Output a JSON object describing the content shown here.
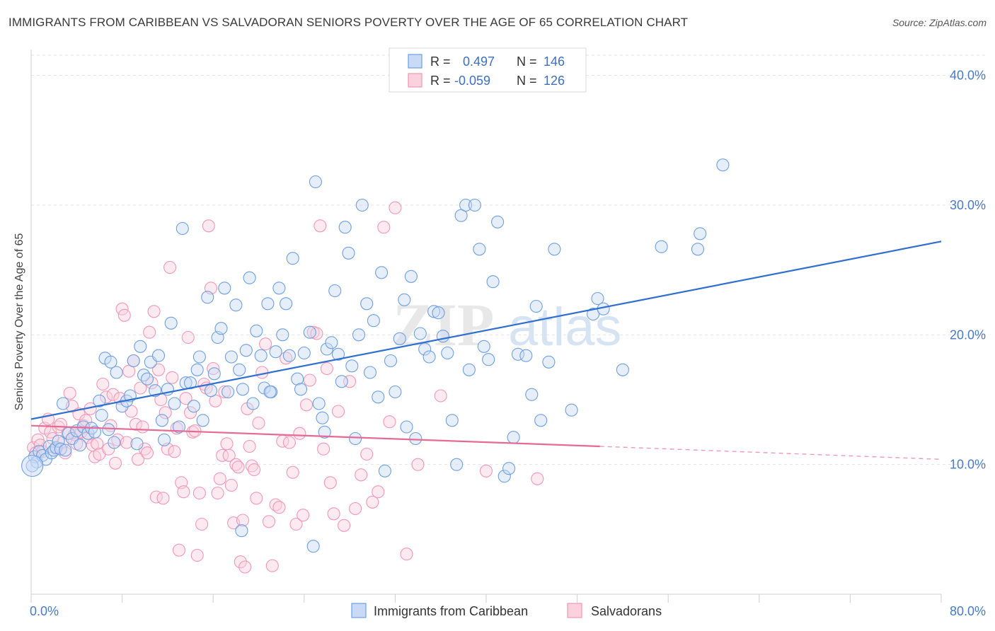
{
  "header": {
    "title": "IMMIGRANTS FROM CARIBBEAN VS SALVADORAN SENIORS POVERTY OVER THE AGE OF 65 CORRELATION CHART",
    "source": "Source: ZipAtlas.com"
  },
  "watermark": {
    "part1": "ZIP",
    "part2": "atlas"
  },
  "legend": {
    "rows": [
      {
        "r_label": "R =",
        "r_value": "0.497",
        "n_label": "N =",
        "n_value": "146",
        "color": "#6f9fe0"
      },
      {
        "r_label": "R =",
        "r_value": "-0.059",
        "n_label": "N =",
        "n_value": "126",
        "color": "#f098b4"
      }
    ]
  },
  "chart_data": {
    "type": "scatter",
    "ylabel": "Seniors Poverty Over the Age of 65",
    "xlim": [
      0,
      80
    ],
    "ylim": [
      0,
      42
    ],
    "x_tick_labels": [
      "0.0%",
      "80.0%"
    ],
    "y_ticks": [
      10,
      20,
      30,
      40
    ],
    "y_tick_labels": [
      "10.0%",
      "20.0%",
      "30.0%",
      "40.0%"
    ],
    "grid": "horizontal dashed",
    "legend_position": "top-center",
    "series": [
      {
        "name": "Immigrants from Caribbean",
        "color": "#6f9fe0",
        "trend": {
          "x": [
            0,
            80
          ],
          "y": [
            13.5,
            27.2
          ]
        },
        "points": [
          [
            0.3,
            10.6
          ],
          [
            0.5,
            10.2
          ],
          [
            0.7,
            11.0
          ],
          [
            1.0,
            10.7
          ],
          [
            1.3,
            10.4
          ],
          [
            1.6,
            11.4
          ],
          [
            1.8,
            10.9
          ],
          [
            2.0,
            11.1
          ],
          [
            2.2,
            11.3
          ],
          [
            2.4,
            11.8
          ],
          [
            2.6,
            11.2
          ],
          [
            2.8,
            14.7
          ],
          [
            3.0,
            11.1
          ],
          [
            3.3,
            12.4
          ],
          [
            3.6,
            12.0
          ],
          [
            4.0,
            12.6
          ],
          [
            4.3,
            11.5
          ],
          [
            4.6,
            12.9
          ],
          [
            5.0,
            12.4
          ],
          [
            5.3,
            12.8
          ],
          [
            5.6,
            12.5
          ],
          [
            6.0,
            14.9
          ],
          [
            6.2,
            13.8
          ],
          [
            6.5,
            18.2
          ],
          [
            6.8,
            12.7
          ],
          [
            7.0,
            17.9
          ],
          [
            7.3,
            11.7
          ],
          [
            7.5,
            17.1
          ],
          [
            8.0,
            14.5
          ],
          [
            8.4,
            14.9
          ],
          [
            8.7,
            15.3
          ],
          [
            9.0,
            18.0
          ],
          [
            9.3,
            11.6
          ],
          [
            9.6,
            19.1
          ],
          [
            9.9,
            16.9
          ],
          [
            10.2,
            16.6
          ],
          [
            10.5,
            17.9
          ],
          [
            10.9,
            15.7
          ],
          [
            11.2,
            18.4
          ],
          [
            11.5,
            13.4
          ],
          [
            11.7,
            11.9
          ],
          [
            12.0,
            15.8
          ],
          [
            12.3,
            20.9
          ],
          [
            12.6,
            14.7
          ],
          [
            13.0,
            12.9
          ],
          [
            13.3,
            28.2
          ],
          [
            13.6,
            16.3
          ],
          [
            14.0,
            16.3
          ],
          [
            14.3,
            14.5
          ],
          [
            14.6,
            17.3
          ],
          [
            14.8,
            18.3
          ],
          [
            15.1,
            13.4
          ],
          [
            15.5,
            22.9
          ],
          [
            15.8,
            15.7
          ],
          [
            16.1,
            17.0
          ],
          [
            16.4,
            19.8
          ],
          [
            16.7,
            20.5
          ],
          [
            17.0,
            23.6
          ],
          [
            17.3,
            15.6
          ],
          [
            17.6,
            18.3
          ],
          [
            18.0,
            22.3
          ],
          [
            18.3,
            17.3
          ],
          [
            18.6,
            15.8
          ],
          [
            18.9,
            18.8
          ],
          [
            19.2,
            24.4
          ],
          [
            19.5,
            14.7
          ],
          [
            19.8,
            20.3
          ],
          [
            20.2,
            18.4
          ],
          [
            20.5,
            15.9
          ],
          [
            20.8,
            22.4
          ],
          [
            21.1,
            15.6
          ],
          [
            21.5,
            18.7
          ],
          [
            21.8,
            23.6
          ],
          [
            22.1,
            20.0
          ],
          [
            22.4,
            22.4
          ],
          [
            22.7,
            18.4
          ],
          [
            23.0,
            25.9
          ],
          [
            23.4,
            16.6
          ],
          [
            23.7,
            15.8
          ],
          [
            24.0,
            18.6
          ],
          [
            24.5,
            20.2
          ],
          [
            25.0,
            31.8
          ],
          [
            25.3,
            14.7
          ],
          [
            25.6,
            13.6
          ],
          [
            25.8,
            12.5
          ],
          [
            26.0,
            18.9
          ],
          [
            26.4,
            19.4
          ],
          [
            26.7,
            23.4
          ],
          [
            27.0,
            18.5
          ],
          [
            27.3,
            16.4
          ],
          [
            27.6,
            28.3
          ],
          [
            27.9,
            26.3
          ],
          [
            28.2,
            17.6
          ],
          [
            28.5,
            12.0
          ],
          [
            28.8,
            20.0
          ],
          [
            29.1,
            30.0
          ],
          [
            29.5,
            22.4
          ],
          [
            29.8,
            17.1
          ],
          [
            30.1,
            21.1
          ],
          [
            30.5,
            15.2
          ],
          [
            30.8,
            24.8
          ],
          [
            31.1,
            9.5
          ],
          [
            31.6,
            18.0
          ],
          [
            32.0,
            15.6
          ],
          [
            32.4,
            19.7
          ],
          [
            32.8,
            22.7
          ],
          [
            33.0,
            12.9
          ],
          [
            33.4,
            24.5
          ],
          [
            33.8,
            12.0
          ],
          [
            34.2,
            20.1
          ],
          [
            34.6,
            18.9
          ],
          [
            35.0,
            18.3
          ],
          [
            35.4,
            21.8
          ],
          [
            35.8,
            21.7
          ],
          [
            36.2,
            19.9
          ],
          [
            36.6,
            18.6
          ],
          [
            37.0,
            13.4
          ],
          [
            37.4,
            10.0
          ],
          [
            37.8,
            29.2
          ],
          [
            38.2,
            30.0
          ],
          [
            38.5,
            17.3
          ],
          [
            39.0,
            30.0
          ],
          [
            39.4,
            26.6
          ],
          [
            39.8,
            19.1
          ],
          [
            40.2,
            18.1
          ],
          [
            40.6,
            24.1
          ],
          [
            41.0,
            28.7
          ],
          [
            41.6,
            9.1
          ],
          [
            42.0,
            9.7
          ],
          [
            42.4,
            12.1
          ],
          [
            42.8,
            18.5
          ],
          [
            43.5,
            18.4
          ],
          [
            44.0,
            15.4
          ],
          [
            44.4,
            22.2
          ],
          [
            44.8,
            13.4
          ],
          [
            45.5,
            17.9
          ],
          [
            46.0,
            26.6
          ],
          [
            47.5,
            14.2
          ],
          [
            49.4,
            21.6
          ],
          [
            49.8,
            22.8
          ],
          [
            50.3,
            22.0
          ],
          [
            52.0,
            17.3
          ],
          [
            55.4,
            26.8
          ],
          [
            58.6,
            26.6
          ],
          [
            58.8,
            27.8
          ],
          [
            60.8,
            33.1
          ],
          [
            0.1,
            9.9
          ],
          [
            21.0,
            15.6
          ],
          [
            18.5,
            4.9
          ],
          [
            24.8,
            3.7
          ]
        ]
      },
      {
        "name": "Salvadorans",
        "color": "#f098b4",
        "trend": {
          "x": [
            0,
            50
          ],
          "y": [
            13.0,
            11.4
          ]
        },
        "trend_dashed": {
          "x": [
            50,
            80
          ],
          "y": [
            11.4,
            10.4
          ]
        },
        "points": [
          [
            0.2,
            11.3
          ],
          [
            0.4,
            10.9
          ],
          [
            0.6,
            11.9
          ],
          [
            0.8,
            11.5
          ],
          [
            1.0,
            11.0
          ],
          [
            1.2,
            12.8
          ],
          [
            1.5,
            13.5
          ],
          [
            1.7,
            12.5
          ],
          [
            1.9,
            12.0
          ],
          [
            2.2,
            11.2
          ],
          [
            2.4,
            12.9
          ],
          [
            2.6,
            13.1
          ],
          [
            2.8,
            11.7
          ],
          [
            3.0,
            10.9
          ],
          [
            3.2,
            12.4
          ],
          [
            3.4,
            15.5
          ],
          [
            3.6,
            14.5
          ],
          [
            3.8,
            12.3
          ],
          [
            4.0,
            11.6
          ],
          [
            4.2,
            13.9
          ],
          [
            4.4,
            12.5
          ],
          [
            4.6,
            13.0
          ],
          [
            4.8,
            13.4
          ],
          [
            5.0,
            12.1
          ],
          [
            5.2,
            14.3
          ],
          [
            5.4,
            11.5
          ],
          [
            5.6,
            10.6
          ],
          [
            5.8,
            11.6
          ],
          [
            6.0,
            10.8
          ],
          [
            6.3,
            16.2
          ],
          [
            6.6,
            15.2
          ],
          [
            6.8,
            11.2
          ],
          [
            7.0,
            13.0
          ],
          [
            7.2,
            15.4
          ],
          [
            7.4,
            10.1
          ],
          [
            7.6,
            11.9
          ],
          [
            7.8,
            15.1
          ],
          [
            8.0,
            22.0
          ],
          [
            8.2,
            21.5
          ],
          [
            8.4,
            11.7
          ],
          [
            8.6,
            17.2
          ],
          [
            8.8,
            14.1
          ],
          [
            9.0,
            18.0
          ],
          [
            9.2,
            13.1
          ],
          [
            9.4,
            10.4
          ],
          [
            9.6,
            15.9
          ],
          [
            9.8,
            12.9
          ],
          [
            10.0,
            11.2
          ],
          [
            10.2,
            10.9
          ],
          [
            10.4,
            20.2
          ],
          [
            10.6,
            16.3
          ],
          [
            10.8,
            21.8
          ],
          [
            11.0,
            7.5
          ],
          [
            11.2,
            17.3
          ],
          [
            11.4,
            15.0
          ],
          [
            11.6,
            7.4
          ],
          [
            11.8,
            14.0
          ],
          [
            12.0,
            11.2
          ],
          [
            12.2,
            25.2
          ],
          [
            12.4,
            16.7
          ],
          [
            12.6,
            11.0
          ],
          [
            12.8,
            12.8
          ],
          [
            13.0,
            3.4
          ],
          [
            13.2,
            8.6
          ],
          [
            13.4,
            7.9
          ],
          [
            13.6,
            15.1
          ],
          [
            13.8,
            19.8
          ],
          [
            14.0,
            14.0
          ],
          [
            14.2,
            12.5
          ],
          [
            14.4,
            12.6
          ],
          [
            14.6,
            3.0
          ],
          [
            14.8,
            7.8
          ],
          [
            15.0,
            5.4
          ],
          [
            15.2,
            16.2
          ],
          [
            15.4,
            15.9
          ],
          [
            15.6,
            28.4
          ],
          [
            15.8,
            23.6
          ],
          [
            16.0,
            17.4
          ],
          [
            16.2,
            14.9
          ],
          [
            16.4,
            7.8
          ],
          [
            16.6,
            8.9
          ],
          [
            16.8,
            10.7
          ],
          [
            17.0,
            15.6
          ],
          [
            17.2,
            11.6
          ],
          [
            17.4,
            10.7
          ],
          [
            17.6,
            8.4
          ],
          [
            17.8,
            5.5
          ],
          [
            18.0,
            10.0
          ],
          [
            18.2,
            9.8
          ],
          [
            18.4,
            2.5
          ],
          [
            18.6,
            5.7
          ],
          [
            18.8,
            2.1
          ],
          [
            19.0,
            14.3
          ],
          [
            19.2,
            11.4
          ],
          [
            19.4,
            9.9
          ],
          [
            19.6,
            9.6
          ],
          [
            19.8,
            7.4
          ],
          [
            20.0,
            13.2
          ],
          [
            20.3,
            17.1
          ],
          [
            20.6,
            19.3
          ],
          [
            20.9,
            5.6
          ],
          [
            21.2,
            2.2
          ],
          [
            21.5,
            6.9
          ],
          [
            21.8,
            6.7
          ],
          [
            22.1,
            11.8
          ],
          [
            22.4,
            18.2
          ],
          [
            22.7,
            11.7
          ],
          [
            23.0,
            9.4
          ],
          [
            23.3,
            5.4
          ],
          [
            23.6,
            12.4
          ],
          [
            23.9,
            6.1
          ],
          [
            24.2,
            14.6
          ],
          [
            24.5,
            16.5
          ],
          [
            24.8,
            20.2
          ],
          [
            25.1,
            20.1
          ],
          [
            25.4,
            28.4
          ],
          [
            25.7,
            11.2
          ],
          [
            26.0,
            17.4
          ],
          [
            26.3,
            8.6
          ],
          [
            26.6,
            6.2
          ],
          [
            27.0,
            14.1
          ],
          [
            27.5,
            5.3
          ],
          [
            28.0,
            16.4
          ],
          [
            28.5,
            6.6
          ],
          [
            29.0,
            9.2
          ],
          [
            29.5,
            10.8
          ],
          [
            30.0,
            7.1
          ],
          [
            30.5,
            7.9
          ],
          [
            31.0,
            28.3
          ],
          [
            31.5,
            13.3
          ],
          [
            32.0,
            29.8
          ],
          [
            33.0,
            3.1
          ],
          [
            34.0,
            10.0
          ],
          [
            36.0,
            15.3
          ],
          [
            40.0,
            9.5
          ],
          [
            44.5,
            8.9
          ]
        ]
      }
    ]
  },
  "bottom_legend": {
    "items": [
      {
        "label": "Immigrants from Caribbean",
        "color": "#6f9fe0"
      },
      {
        "label": "Salvadorans",
        "color": "#f098b4"
      }
    ]
  }
}
